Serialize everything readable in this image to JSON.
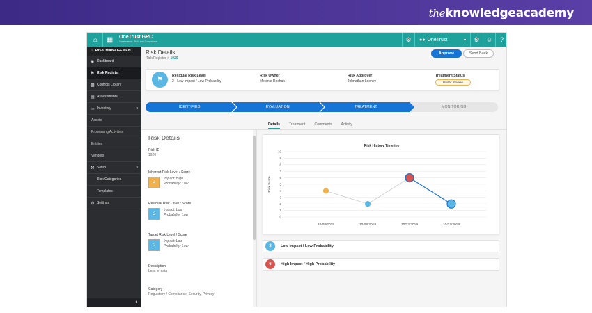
{
  "brand": {
    "prefix": "the",
    "name": "knowledgeacademy"
  },
  "topbar": {
    "logo": "OneTrust GRC",
    "logo_sub": "Governance, Risk, and Compliance",
    "org": "OneTrust",
    "icons": [
      "home-icon",
      "grid-icon",
      "bell-icon",
      "org-icon",
      "gear-icon",
      "user-icon",
      "help-icon"
    ]
  },
  "sidebar": {
    "title": "IT RISK MANAGEMENT",
    "items": [
      {
        "label": "Dashboard",
        "icon": "dashboard-icon"
      },
      {
        "label": "Risk Register",
        "icon": "flag-icon",
        "active": true
      },
      {
        "label": "Controls Library",
        "icon": "library-icon"
      },
      {
        "label": "Assessments",
        "icon": "clipboard-icon"
      },
      {
        "label": "Inventory",
        "icon": "folder-icon"
      },
      {
        "label": "Assets"
      },
      {
        "label": "Processing Activities"
      },
      {
        "label": "Entities"
      },
      {
        "label": "Vendors"
      },
      {
        "label": "Setup",
        "icon": "wrench-icon"
      },
      {
        "label": "Risk Categories"
      },
      {
        "label": "Templates"
      },
      {
        "label": "Settings",
        "icon": "gear-icon"
      }
    ]
  },
  "header": {
    "title": "Risk Details",
    "crumb_root": "Risk Register",
    "crumb_sep": ">",
    "crumb_id": "1920",
    "approve_label": "Approve",
    "send_back_label": "Send Back"
  },
  "summary": {
    "residual_label": "Residual Risk Level",
    "residual_value": "2 - Low Impact / Low Probability",
    "owner_label": "Risk Owner",
    "owner_value": "Melanie Rochak",
    "approver_label": "Risk Approver",
    "approver_value": "Johnathan Looney",
    "status_label": "Treatment Status",
    "status_value": "Under Review"
  },
  "stages": [
    "IDENTIFIED",
    "EVALUATION",
    "TREATMENT",
    "MONITORING"
  ],
  "stages_completed": 3,
  "tabs": [
    "Details",
    "Treatment",
    "Comments",
    "Activity"
  ],
  "active_tab": "Details",
  "details": {
    "title": "Risk Details",
    "risk_id_label": "Risk ID",
    "risk_id_value": "1920",
    "inherent_label": "Inherent Risk Level / Score",
    "inherent_score": "4",
    "inherent_impact": "Impact: High",
    "inherent_prob": "Probability: Low",
    "residual_label": "Residual Risk Level / Score",
    "residual_score": "2",
    "residual_impact": "Impact: Low",
    "residual_prob": "Probability: Low",
    "target_label": "Target Risk Level / Score",
    "target_score": "2",
    "target_impact": "Impact: Low",
    "target_prob": "Probability: Low",
    "description_label": "Description",
    "description_value": "Loss of data",
    "category_label": "Category",
    "category_value": "Regulatory / Compliance, Security, Privacy"
  },
  "legend": [
    {
      "score": "2",
      "label": "Low Impact / Low Probability",
      "color": "#5ab6e3"
    },
    {
      "score": "6",
      "label": "High Impact / High Probability",
      "color": "#d9534f"
    }
  ],
  "colors": {
    "teal": "#1fa19c",
    "blue": "#1674d6",
    "orange": "#f0b04a",
    "light_blue": "#5ab6e3",
    "red": "#d9534f"
  },
  "chart_data": {
    "type": "line",
    "title": "Risk History Timeline",
    "ylabel": "Risk Score",
    "xlabel": "",
    "categories": [
      "10/08/2019",
      "10/08/2019",
      "10/22/2019",
      "10/22/2019"
    ],
    "values": [
      4,
      2,
      6,
      2
    ],
    "point_colors": [
      "#f0b04a",
      "#5ab6e3",
      "#d9534f",
      "#5ab6e3"
    ],
    "ylim": [
      0,
      10
    ],
    "yticks": [
      "0",
      "1",
      "2",
      "3",
      "4",
      "5",
      "6",
      "7",
      "8",
      "9",
      "10"
    ],
    "grid": true
  }
}
